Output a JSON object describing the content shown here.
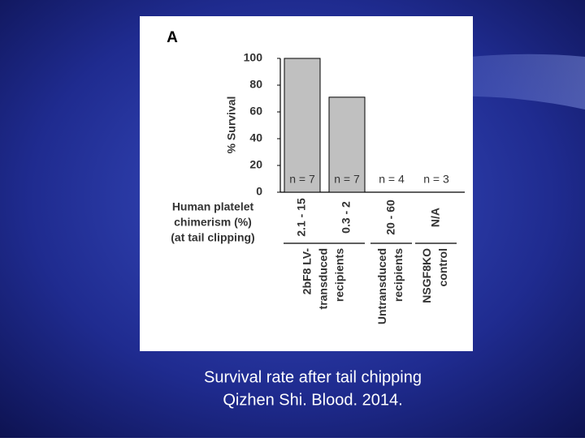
{
  "chart_data": {
    "type": "bar",
    "panel_label": "A",
    "y_label": "% Survival",
    "categories": [
      "2.1 - 15",
      "0.3 - 2",
      "20 - 60",
      "N/A"
    ],
    "values": [
      100,
      71,
      0,
      0
    ],
    "annotations": [
      "n = 7",
      "n = 7",
      "n = 4",
      "n = 3"
    ],
    "row_label_lines": [
      "Human  platelet",
      "chimerism (%)",
      "(at tail clipping)"
    ],
    "group_labels": [
      [
        "2bF8 LV-",
        "transduced",
        "recipients"
      ],
      [
        "Untransduced",
        "recipients"
      ],
      [
        "NSGF8KO",
        "control"
      ]
    ],
    "color": "#c0c0c0",
    "ylim": [
      0,
      100
    ],
    "yticks": [
      0,
      20,
      40,
      60,
      80,
      100
    ]
  },
  "caption": [
    "Survival rate after tail chipping",
    "Qizhen Shi. Blood. 2014."
  ]
}
